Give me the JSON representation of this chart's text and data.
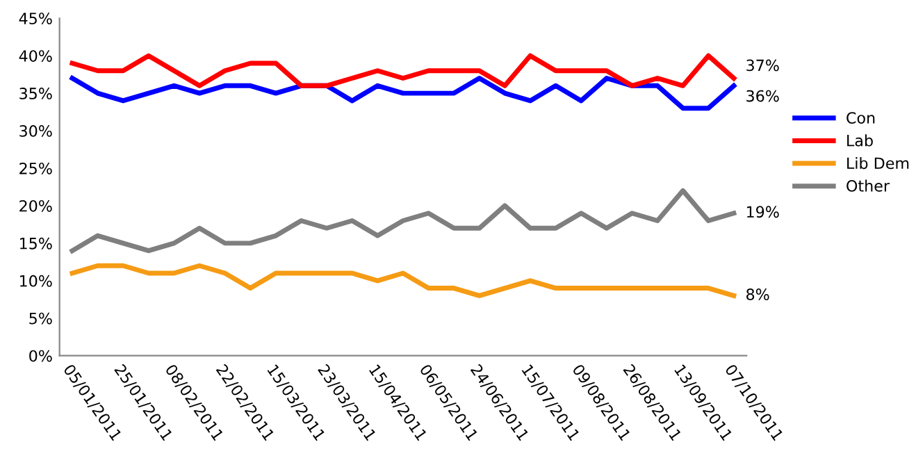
{
  "chart_data": {
    "type": "line",
    "categories": [
      "05/01/2011",
      null,
      "25/01/2011",
      null,
      "08/02/2011",
      null,
      "22/02/2011",
      null,
      "15/03/2011",
      null,
      "23/03/2011",
      null,
      "15/04/2011",
      null,
      "06/05/2011",
      null,
      "24/06/2011",
      null,
      "15/07/2011",
      null,
      "09/08/2011",
      null,
      "26/08/2011",
      null,
      "13/09/2011",
      null,
      "07/10/2011"
    ],
    "series": [
      {
        "name": "Con",
        "color": "#0000ff",
        "values": [
          37,
          35,
          34,
          35,
          36,
          35,
          36,
          36,
          35,
          36,
          36,
          34,
          36,
          35,
          35,
          35,
          37,
          35,
          34,
          36,
          34,
          37,
          36,
          36,
          33,
          33,
          36
        ]
      },
      {
        "name": "Lab",
        "color": "#ff0000",
        "values": [
          39,
          38,
          38,
          40,
          38,
          36,
          38,
          39,
          39,
          36,
          36,
          37,
          38,
          37,
          38,
          38,
          38,
          36,
          40,
          38,
          38,
          38,
          36,
          37,
          36,
          40,
          37
        ]
      },
      {
        "name": "Lib Dem",
        "color": "#f59b14",
        "values": [
          11,
          12,
          12,
          11,
          11,
          12,
          11,
          9,
          11,
          11,
          11,
          11,
          10,
          11,
          9,
          9,
          8,
          9,
          10,
          9,
          9,
          9,
          9,
          9,
          9,
          9,
          8
        ]
      },
      {
        "name": "Other",
        "color": "#7f7f7f",
        "values": [
          14,
          16,
          15,
          14,
          15,
          17,
          15,
          15,
          16,
          18,
          17,
          18,
          16,
          18,
          19,
          17,
          17,
          20,
          17,
          17,
          19,
          17,
          19,
          18,
          22,
          18,
          19
        ]
      }
    ],
    "ylim": [
      0,
      45
    ],
    "yticks": [
      {
        "value": 0,
        "label": "0%"
      },
      {
        "value": 5,
        "label": "5%"
      },
      {
        "value": 10,
        "label": "10%"
      },
      {
        "value": 15,
        "label": "15%"
      },
      {
        "value": 20,
        "label": "20%"
      },
      {
        "value": 25,
        "label": "25%"
      },
      {
        "value": 30,
        "label": "30%"
      },
      {
        "value": 35,
        "label": "35%"
      },
      {
        "value": 40,
        "label": "40%"
      },
      {
        "value": 45,
        "label": "45%"
      }
    ],
    "annotations": [
      {
        "text": "37%",
        "x": "07/10/2011",
        "y": 37
      },
      {
        "text": "36%",
        "x": "07/10/2011",
        "y": 36
      },
      {
        "text": "19%",
        "x": "07/10/2011",
        "y": 19
      },
      {
        "text": "8%",
        "x": "07/10/2011",
        "y": 8
      }
    ],
    "legend": "right",
    "grid": false,
    "marker": "none",
    "line_style": "solid"
  }
}
